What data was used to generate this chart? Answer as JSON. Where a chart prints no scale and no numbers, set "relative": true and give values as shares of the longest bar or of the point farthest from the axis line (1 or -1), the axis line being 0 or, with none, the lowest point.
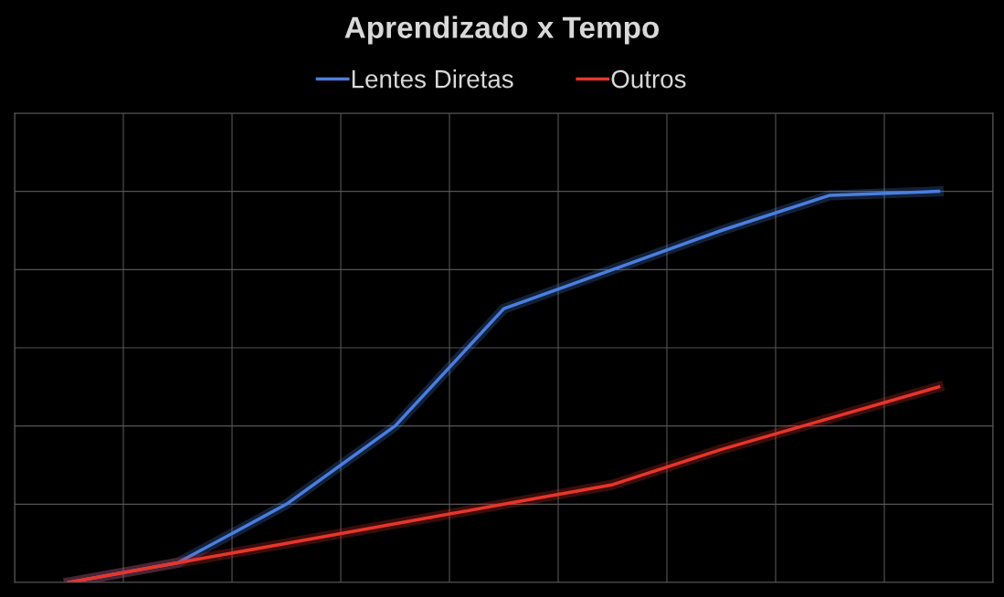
{
  "chart_data": {
    "type": "line",
    "title": "Aprendizado x Tempo",
    "categories": [
      null,
      null,
      null,
      null,
      null,
      null,
      null,
      null,
      null
    ],
    "relative": true,
    "grid": true,
    "legend": "top",
    "marker": "none",
    "line_style": "solid",
    "series": [
      {
        "name": "Lentes Diretas",
        "color": "#4a7fe0",
        "values": [
          0,
          0.05,
          0.2,
          0.4,
          0.7,
          0.8,
          0.9,
          0.99,
          1
        ]
      },
      {
        "name": "Outros",
        "color": "#e8352a",
        "values": [
          0,
          0.05,
          0.1,
          0.15,
          0.2,
          0.25,
          0.34,
          0.42,
          0.5
        ]
      }
    ]
  }
}
